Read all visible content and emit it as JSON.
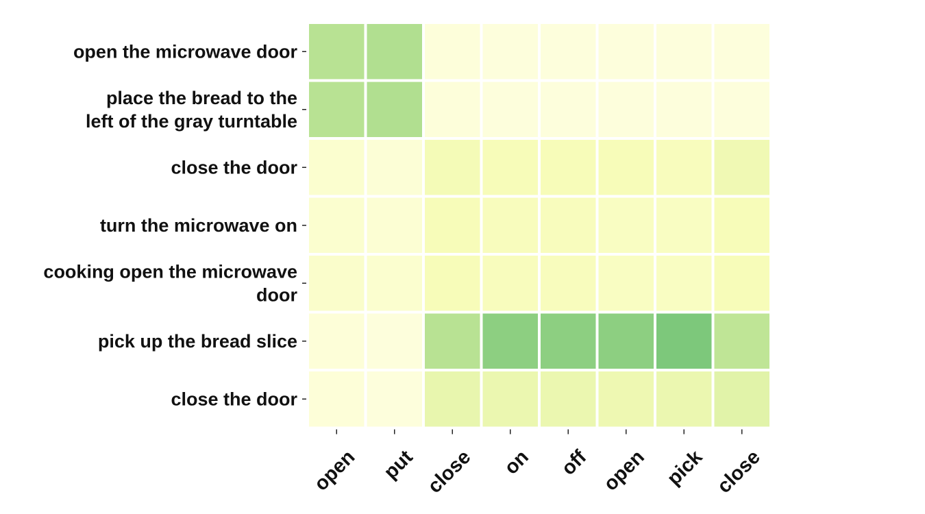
{
  "chart_data": {
    "type": "heatmap",
    "title": "",
    "xlabel": "",
    "ylabel": "",
    "rows": [
      [
        "open the microwave door"
      ],
      [
        "place the bread to the",
        "left of the gray turntable"
      ],
      [
        "close the door"
      ],
      [
        "turn the microwave on"
      ],
      [
        "cooking open the microwave",
        "door"
      ],
      [
        "pick up the bread slice"
      ],
      [
        "close the door"
      ]
    ],
    "columns": [
      "open",
      "put",
      "close",
      "on",
      "off",
      "open",
      "pick",
      "close"
    ],
    "values": [
      [
        0.55,
        0.58,
        0.05,
        0.04,
        0.04,
        0.04,
        0.04,
        0.04
      ],
      [
        0.55,
        0.58,
        0.05,
        0.04,
        0.04,
        0.04,
        0.04,
        0.04
      ],
      [
        0.1,
        0.07,
        0.22,
        0.2,
        0.2,
        0.2,
        0.18,
        0.25
      ],
      [
        0.1,
        0.08,
        0.2,
        0.18,
        0.18,
        0.16,
        0.16,
        0.2
      ],
      [
        0.12,
        0.1,
        0.2,
        0.18,
        0.18,
        0.16,
        0.16,
        0.2
      ],
      [
        0.06,
        0.04,
        0.55,
        0.72,
        0.72,
        0.72,
        0.78,
        0.52
      ],
      [
        0.06,
        0.04,
        0.3,
        0.28,
        0.28,
        0.26,
        0.28,
        0.35
      ]
    ],
    "colormap": [
      "#ffffe5",
      "#f7fcb9",
      "#d9f0a3",
      "#addd8e",
      "#78c679",
      "#41ab5d"
    ],
    "colorbar": false,
    "grid": false
  }
}
